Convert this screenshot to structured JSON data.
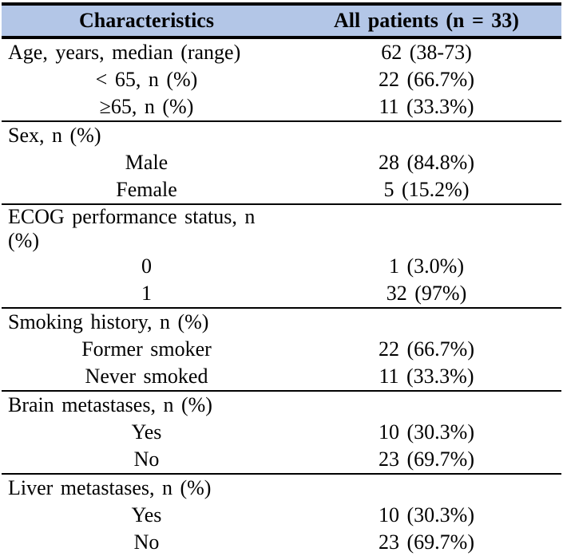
{
  "table": {
    "header": {
      "col1": "Characteristics",
      "col2": "All patients (n = 33)"
    },
    "rows": [
      {
        "label": "Age, years, median (range)",
        "value": "62 (38-73)",
        "indent": "left",
        "rule_below": false
      },
      {
        "label": "< 65, n (%)",
        "value": "22 (66.7%)",
        "indent": "center",
        "rule_below": false
      },
      {
        "label": "≥65, n (%)",
        "value": "11 (33.3%)",
        "indent": "center",
        "rule_below": true
      },
      {
        "label": "Sex, n (%)",
        "value": "",
        "indent": "left",
        "rule_below": false
      },
      {
        "label": "Male",
        "value": "28 (84.8%)",
        "indent": "center",
        "rule_below": false
      },
      {
        "label": "Female",
        "value": "5 (15.2%)",
        "indent": "center",
        "rule_below": true
      },
      {
        "label": "ECOG performance status, n (%)",
        "value": "",
        "indent": "left",
        "rule_below": false
      },
      {
        "label": "0",
        "value": "1 (3.0%)",
        "indent": "center",
        "rule_below": false
      },
      {
        "label": "1",
        "value": "32 (97%)",
        "indent": "center",
        "rule_below": true
      },
      {
        "label": "Smoking history, n (%)",
        "value": "",
        "indent": "left",
        "rule_below": false
      },
      {
        "label": "Former smoker",
        "value": "22 (66.7%)",
        "indent": "center",
        "rule_below": false
      },
      {
        "label": "Never smoked",
        "value": "11 (33.3%)",
        "indent": "center",
        "rule_below": true
      },
      {
        "label": "Brain metastases, n (%)",
        "value": "",
        "indent": "left",
        "rule_below": false
      },
      {
        "label": "Yes",
        "value": "10 (30.3%)",
        "indent": "center",
        "rule_below": false
      },
      {
        "label": "No",
        "value": "23 (69.7%)",
        "indent": "center",
        "rule_below": true
      },
      {
        "label": "Liver metastases, n (%)",
        "value": "",
        "indent": "left",
        "rule_below": false
      },
      {
        "label": "Yes",
        "value": "10 (30.3%)",
        "indent": "center",
        "rule_below": false
      },
      {
        "label": "No",
        "value": "23 (69.7%)",
        "indent": "center",
        "rule_below": true
      }
    ],
    "colors": {
      "header_bg": "#b3c6e7",
      "rule": "#000000",
      "text": "#000000"
    }
  }
}
